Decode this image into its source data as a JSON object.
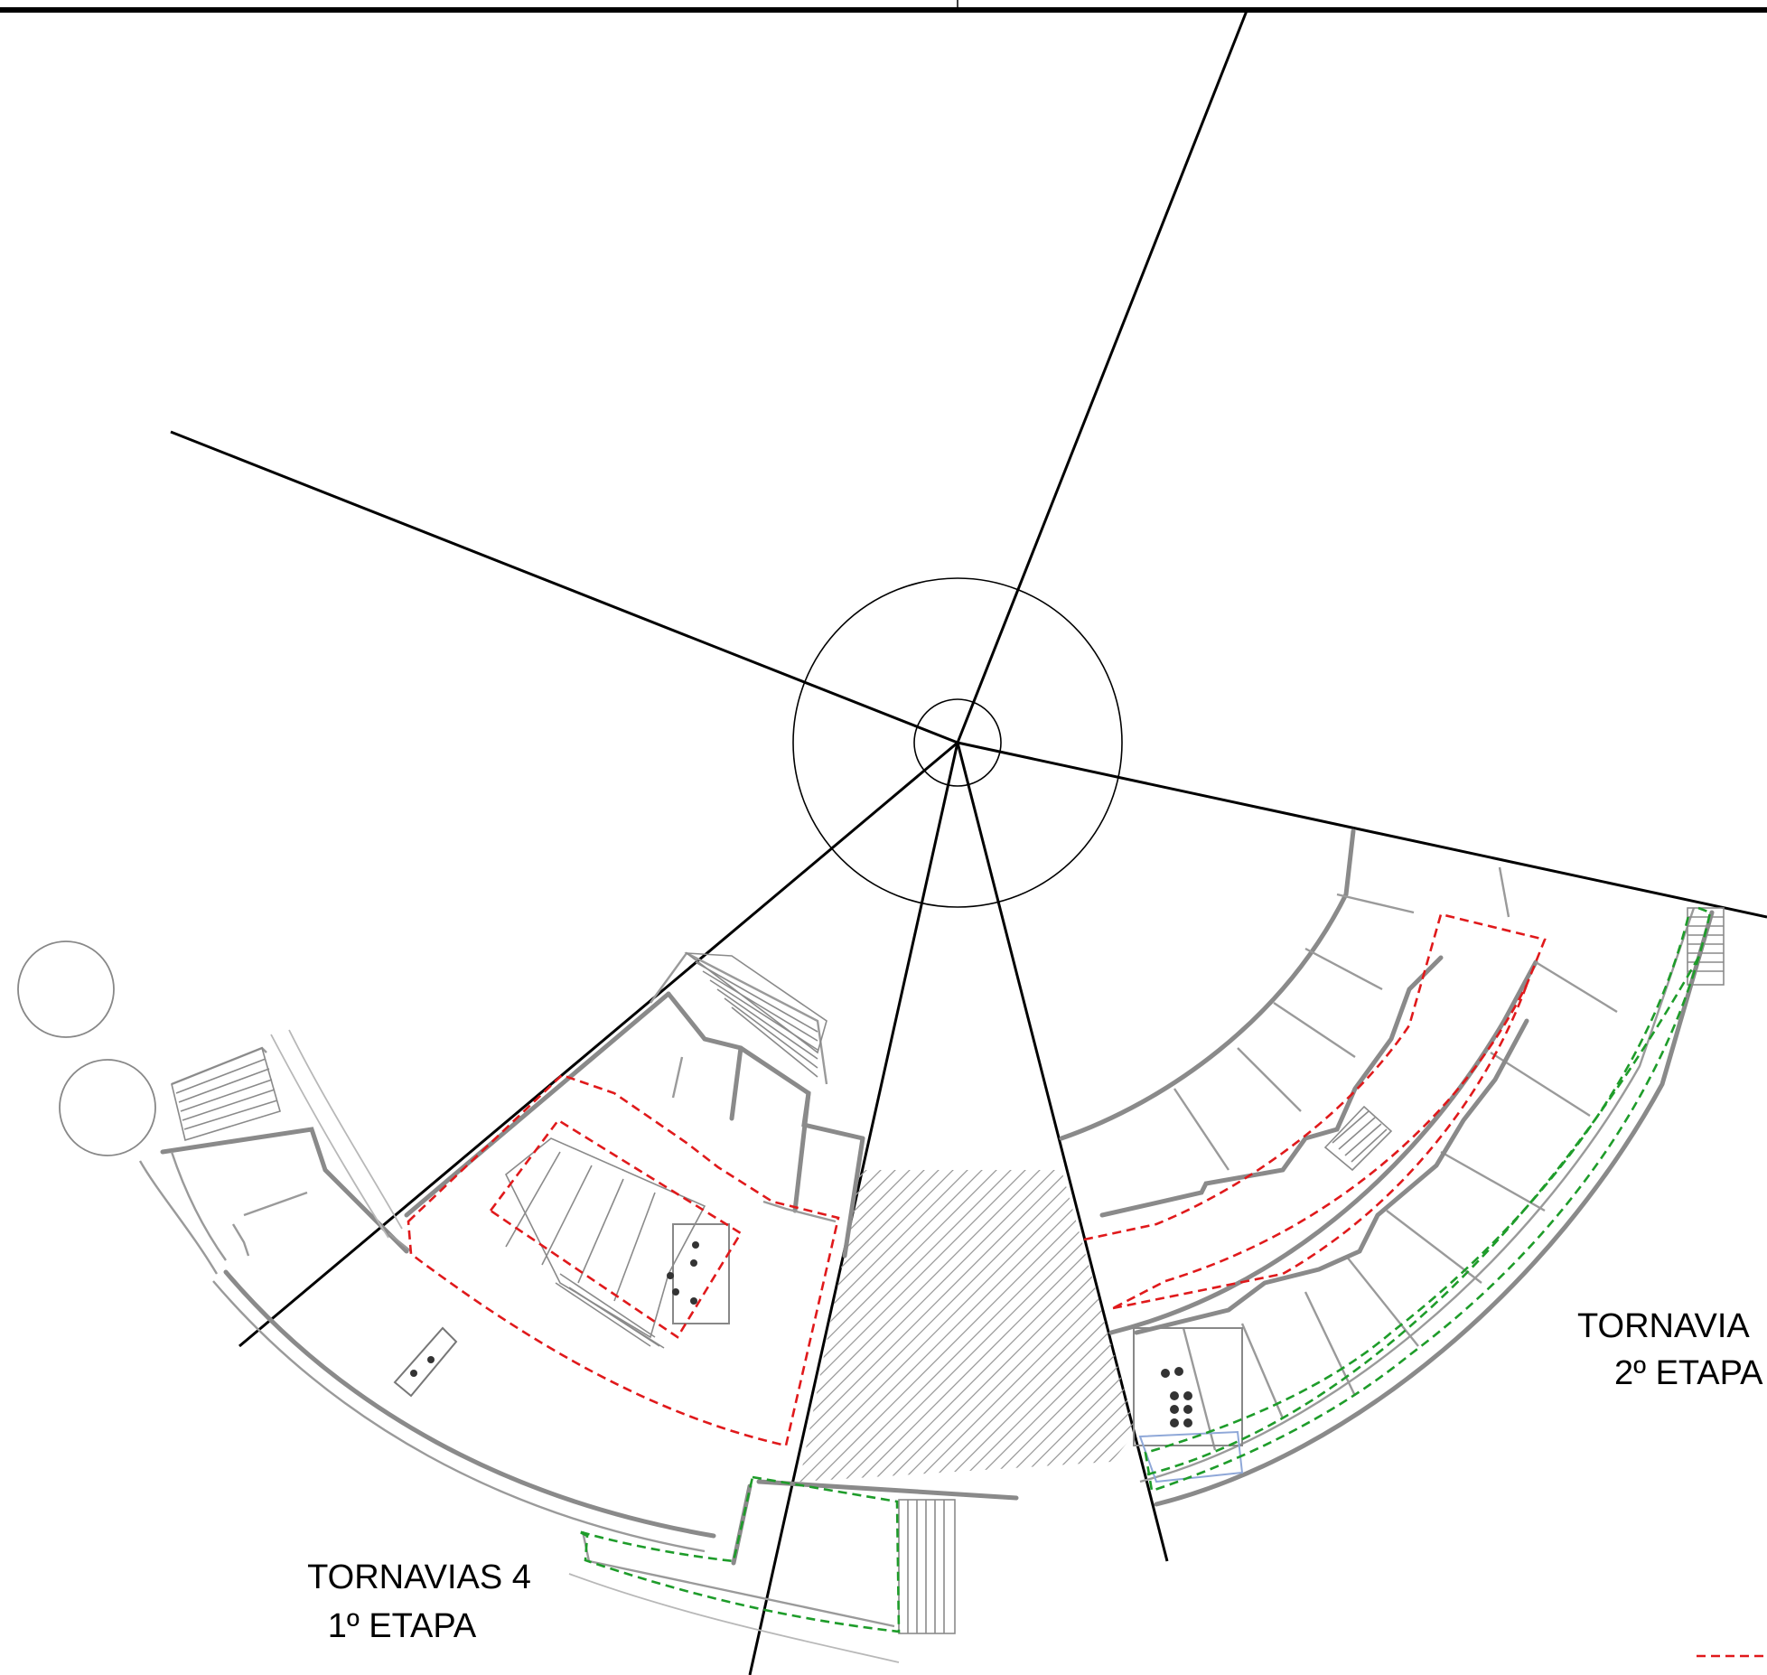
{
  "labels": {
    "tornavias4_name": "TORNAVIAS 4",
    "tornavias4_stage": "1º ETAPA",
    "tornavias_right_name": "TORNAVIA",
    "tornavias_right_stage": "2º ETAPA"
  },
  "colors": {
    "axes": "#000000",
    "walls": "#8a8a8a",
    "boundary_red": "#e0191b",
    "boundary_green": "#1e9c2a",
    "hatch": "#9a9a9a"
  }
}
